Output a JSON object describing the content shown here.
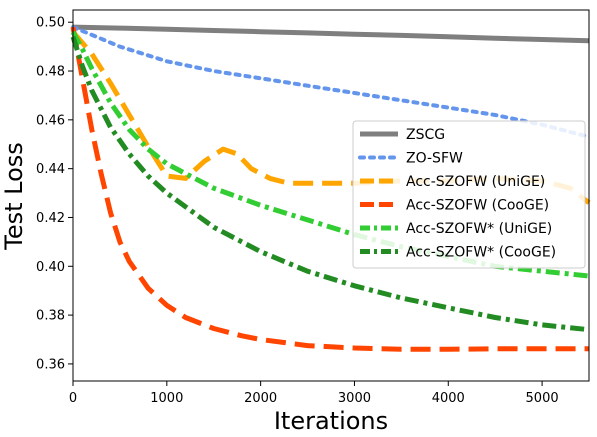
{
  "chart_data": {
    "type": "line",
    "xlabel": "Iterations",
    "ylabel": "Test Loss",
    "xlim": [
      0,
      5500
    ],
    "ylim": [
      0.353,
      0.505
    ],
    "x_ticks": [
      0,
      1000,
      2000,
      3000,
      4000,
      5000
    ],
    "x_tick_labels": [
      "0",
      "1000",
      "2000",
      "3000",
      "4000",
      "5000"
    ],
    "y_ticks": [
      0.36,
      0.38,
      0.4,
      0.42,
      0.44,
      0.46,
      0.48,
      0.5
    ],
    "y_tick_labels": [
      "0.36",
      "0.38",
      "0.40",
      "0.42",
      "0.44",
      "0.46",
      "0.48",
      "0.50"
    ],
    "grid": false,
    "legend_position": "center-right",
    "series": [
      {
        "name": "ZSCG",
        "color": "#7f7f7f",
        "style": "solid",
        "x": [
          0,
          500,
          1000,
          1500,
          2000,
          2500,
          3000,
          3500,
          4000,
          4500,
          5000,
          5500
        ],
        "y": [
          0.498,
          0.4976,
          0.4971,
          0.4966,
          0.4961,
          0.4956,
          0.4951,
          0.4946,
          0.494,
          0.4934,
          0.4929,
          0.4924
        ]
      },
      {
        "name": "ZO-SFW",
        "color": "#6495ed",
        "style": "dotted",
        "x": [
          0,
          250,
          500,
          750,
          1000,
          1500,
          2000,
          2500,
          3000,
          3500,
          4000,
          4500,
          5000,
          5500
        ],
        "y": [
          0.498,
          0.494,
          0.49,
          0.487,
          0.484,
          0.48,
          0.477,
          0.474,
          0.471,
          0.468,
          0.465,
          0.462,
          0.458,
          0.453
        ]
      },
      {
        "name": "Acc-SZOFW (UniGE)",
        "color": "#ffa500",
        "style": "dashed",
        "x": [
          0,
          200,
          400,
          600,
          800,
          1000,
          1200,
          1400,
          1600,
          1750,
          1900,
          2100,
          2300,
          2600,
          3000,
          3500,
          4000,
          4500,
          5000,
          5300,
          5500
        ],
        "y": [
          0.496,
          0.487,
          0.475,
          0.462,
          0.449,
          0.437,
          0.436,
          0.443,
          0.448,
          0.446,
          0.44,
          0.436,
          0.434,
          0.434,
          0.434,
          0.435,
          0.435,
          0.436,
          0.435,
          0.432,
          0.426
        ]
      },
      {
        "name": "Acc-SZOFW (CooGE)",
        "color": "#ff4500",
        "style": "dashed",
        "x": [
          0,
          100,
          200,
          300,
          400,
          500,
          600,
          800,
          1000,
          1200,
          1500,
          1800,
          2000,
          2500,
          3000,
          3500,
          4000,
          4500,
          5000,
          5500
        ],
        "y": [
          0.498,
          0.477,
          0.456,
          0.438,
          0.422,
          0.41,
          0.402,
          0.391,
          0.384,
          0.379,
          0.3745,
          0.3715,
          0.37,
          0.3675,
          0.3665,
          0.366,
          0.366,
          0.3662,
          0.3662,
          0.3662
        ]
      },
      {
        "name": "Acc-SZOFW* (UniGE)",
        "color": "#32cd32",
        "style": "dashdot",
        "x": [
          0,
          100,
          200,
          400,
          600,
          800,
          1000,
          1500,
          2000,
          2500,
          3000,
          3500,
          4000,
          4500,
          5000,
          5500
        ],
        "y": [
          0.496,
          0.489,
          0.481,
          0.467,
          0.456,
          0.448,
          0.442,
          0.432,
          0.425,
          0.419,
          0.413,
          0.408,
          0.404,
          0.4,
          0.398,
          0.396
        ]
      },
      {
        "name": "Acc-SZOFW* (CooGE)",
        "color": "#228b22",
        "style": "dashdot",
        "x": [
          0,
          100,
          200,
          400,
          600,
          800,
          1000,
          1500,
          2000,
          2500,
          3000,
          3500,
          4000,
          4500,
          5000,
          5500
        ],
        "y": [
          0.494,
          0.482,
          0.472,
          0.457,
          0.446,
          0.437,
          0.43,
          0.416,
          0.406,
          0.398,
          0.392,
          0.387,
          0.383,
          0.379,
          0.376,
          0.374
        ]
      }
    ]
  }
}
